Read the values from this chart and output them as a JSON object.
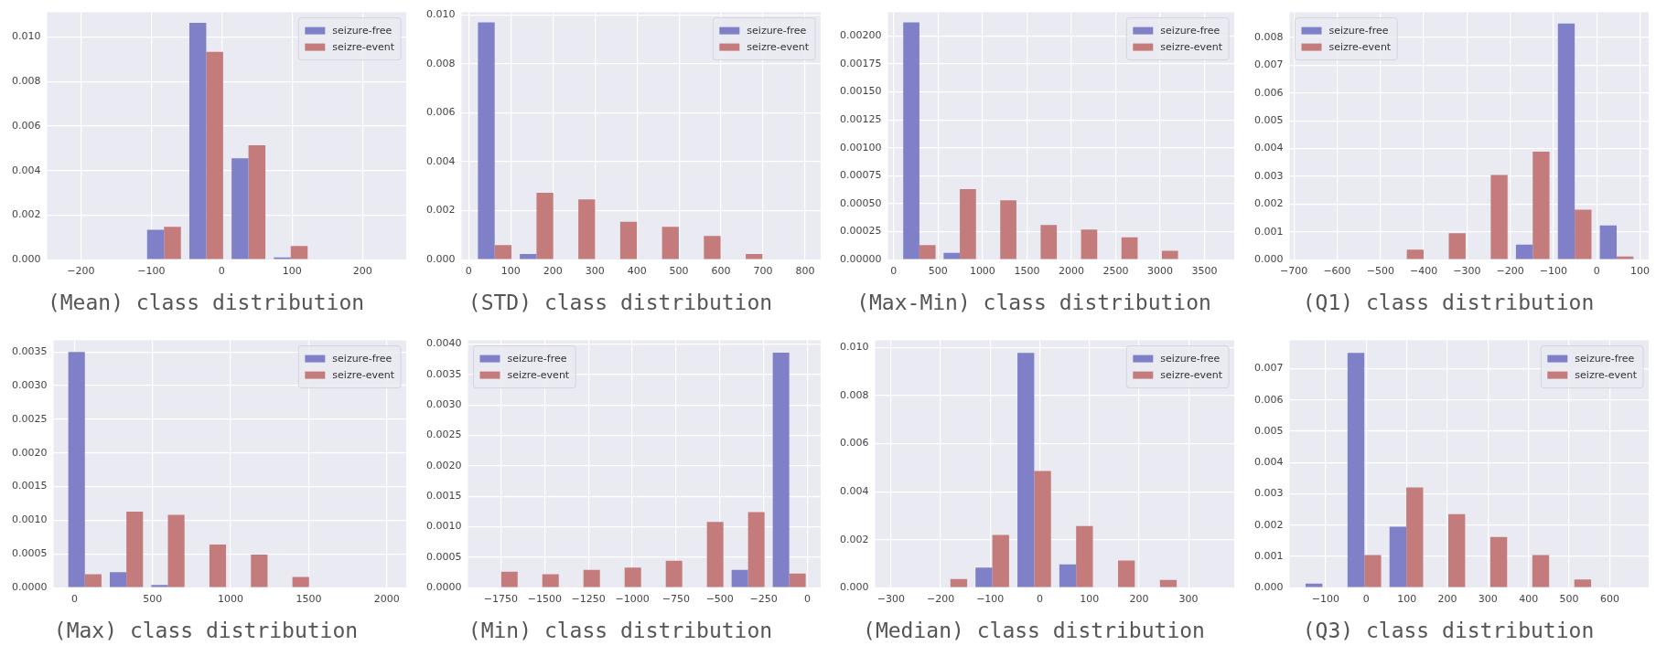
{
  "chart_data": [
    {
      "type": "histogram",
      "title": "(Mean) class distribution",
      "bins": [
        -232,
        -172,
        -112,
        -52,
        8,
        68,
        128,
        188,
        248
      ],
      "series": [
        {
          "name": "seizure-free",
          "color": "#8080c8",
          "values": [
            0,
            0,
            0.00134,
            0.01063,
            0.00455,
            0.0001,
            0,
            0
          ]
        },
        {
          "name": "seizre-event",
          "color": "#c47b7b",
          "values": [
            0,
            0,
            0.00147,
            0.00933,
            0.00514,
            0.00061,
            0,
            0
          ]
        }
      ],
      "xlim": [
        -248,
        262
      ],
      "ylim": [
        0,
        0.0111
      ],
      "xticks": [
        {
          "value": -200,
          "label": "−200"
        },
        {
          "value": -100,
          "label": "−100"
        },
        0,
        100,
        200
      ],
      "yticks": [
        {
          "value": 0,
          "label": "0.000"
        },
        0.002,
        0.004,
        0.006,
        0.008,
        {
          "value": 0.01,
          "label": "0.010"
        }
      ],
      "grid": true,
      "legend": "top right"
    },
    {
      "type": "histogram",
      "title": "(STD) class distribution",
      "bins": [
        12,
        111.5,
        211,
        310.5,
        410,
        509.5,
        609,
        708.5,
        808
      ],
      "series": [
        {
          "name": "seizure-free",
          "color": "#8080c8",
          "values": [
            0.00969,
            0.00023,
            0,
            0,
            0,
            0,
            0,
            0
          ]
        },
        {
          "name": "seizre-event",
          "color": "#c47b7b",
          "values": [
            0.0006,
            0.00273,
            0.00246,
            0.00155,
            0.00134,
            0.00097,
            0.00023,
            0
          ]
        }
      ],
      "xlim": [
        -17,
        837
      ],
      "ylim": [
        0,
        0.0101
      ],
      "xticks": [
        0,
        100,
        200,
        300,
        400,
        500,
        600,
        700,
        800
      ],
      "yticks": [
        {
          "value": 0,
          "label": "0.000"
        },
        0.002,
        0.004,
        0.006,
        0.008,
        {
          "value": 0.01,
          "label": "0.010"
        }
      ],
      "grid": true,
      "legend": "top right"
    },
    {
      "type": "histogram",
      "title": "(Max-Min) class distribution",
      "bins": [
        62,
        517,
        972,
        1427,
        1882,
        2337,
        2792,
        3247,
        3702
      ],
      "series": [
        {
          "name": "seizure-free",
          "color": "#8080c8",
          "values": [
            0.00212,
            6e-05,
            0,
            0,
            0,
            0,
            0,
            0
          ]
        },
        {
          "name": "seizre-event",
          "color": "#c47b7b",
          "values": [
            0.00013,
            0.00063,
            0.00053,
            0.00031,
            0.00027,
            0.0002,
            8e-05,
            0
          ]
        }
      ],
      "xlim": [
        -65,
        3834
      ],
      "ylim": [
        0,
        0.00221
      ],
      "xticks": [
        0,
        500,
        1000,
        1500,
        2000,
        2500,
        3000,
        3500
      ],
      "yticks": [
        {
          "value": 0,
          "label": "0.00000"
        },
        0.00025,
        {
          "value": 0.0005,
          "label": "0.00050"
        },
        0.00075,
        {
          "value": 0.001,
          "label": "0.00100"
        },
        0.00125,
        {
          "value": 0.0015,
          "label": "0.00150"
        },
        0.00175,
        {
          "value": 0.002,
          "label": "0.00200"
        }
      ],
      "grid": true,
      "legend": "top right"
    },
    {
      "type": "histogram",
      "title": "(Q1) class distribution",
      "bins": [
        -681.5,
        -584.5,
        -487.5,
        -390.5,
        -293.5,
        -196.5,
        -99.5,
        -2.5,
        94.5
      ],
      "series": [
        {
          "name": "seizure-free",
          "color": "#8080c8",
          "values": [
            0,
            0,
            0,
            0,
            0,
            0.00054,
            0.0085,
            0.00123
          ]
        },
        {
          "name": "seizre-event",
          "color": "#c47b7b",
          "values": [
            0,
            0,
            0.00036,
            0.00095,
            0.00305,
            0.00389,
            0.0018,
            0.00011
          ]
        }
      ],
      "xlim": [
        -710,
        120
      ],
      "ylim": [
        0,
        0.0089
      ],
      "xticks": [
        {
          "value": -700,
          "label": "−700"
        },
        {
          "value": -600,
          "label": "−600"
        },
        {
          "value": -500,
          "label": "−500"
        },
        {
          "value": -400,
          "label": "−400"
        },
        {
          "value": -300,
          "label": "−300"
        },
        {
          "value": -200,
          "label": "−200"
        },
        {
          "value": -100,
          "label": "−100"
        },
        0,
        100
      ],
      "yticks": [
        {
          "value": 0,
          "label": "0.000"
        },
        0.001,
        0.002,
        0.003,
        0.004,
        0.005,
        0.006,
        0.007,
        0.008
      ],
      "grid": true,
      "legend": "top left"
    },
    {
      "type": "histogram",
      "title": "(Max) class distribution",
      "bins": [
        -67,
        199,
        465,
        731,
        997,
        1263,
        1529,
        1795,
        2061
      ],
      "series": [
        {
          "name": "seizure-free",
          "color": "#8080c8",
          "values": [
            0.0035,
            0.00023,
            4e-05,
            0,
            0,
            0,
            0,
            0
          ]
        },
        {
          "name": "seizre-event",
          "color": "#c47b7b",
          "values": [
            0.0002,
            0.00113,
            0.00108,
            0.00064,
            0.00049,
            0.00016,
            0,
            0
          ]
        }
      ],
      "xlim": [
        -135,
        2125
      ],
      "ylim": [
        0,
        0.00367
      ],
      "xticks": [
        0,
        500,
        1000,
        1500,
        2000
      ],
      "yticks": [
        {
          "value": 0,
          "label": "0.0000"
        },
        0.0005,
        {
          "value": 0.001,
          "label": "0.0010"
        },
        0.0015,
        {
          "value": 0.002,
          "label": "0.0020"
        },
        0.0025,
        {
          "value": 0.003,
          "label": "0.0030"
        },
        0.0035
      ],
      "grid": true,
      "legend": "top right"
    },
    {
      "type": "histogram",
      "title": "(Min) class distribution",
      "bins": [
        -1866,
        -1631,
        -1396,
        -1161,
        -926,
        -691,
        -456,
        -221,
        14
      ],
      "series": [
        {
          "name": "seizure-free",
          "color": "#8080c8",
          "values": [
            0,
            0,
            0,
            0,
            0,
            0,
            0.00029,
            0.00386
          ]
        },
        {
          "name": "seizre-event",
          "color": "#c47b7b",
          "values": [
            0.00026,
            0.00022,
            0.00029,
            0.00033,
            0.00044,
            0.00108,
            0.00124,
            0.00023
          ]
        }
      ],
      "xlim": [
        -1938,
        76
      ],
      "ylim": [
        0,
        0.00406
      ],
      "xticks": [
        {
          "value": -1750,
          "label": "−1750"
        },
        {
          "value": -1500,
          "label": "−1500"
        },
        {
          "value": -1250,
          "label": "−1250"
        },
        {
          "value": -1000,
          "label": "−1000"
        },
        {
          "value": -750,
          "label": "−750"
        },
        {
          "value": -500,
          "label": "−500"
        },
        {
          "value": -250,
          "label": "−250"
        },
        0
      ],
      "yticks": [
        {
          "value": 0,
          "label": "0.0000"
        },
        0.0005,
        {
          "value": 0.001,
          "label": "0.0010"
        },
        0.0015,
        {
          "value": 0.002,
          "label": "0.0020"
        },
        0.0025,
        {
          "value": 0.003,
          "label": "0.0030"
        },
        0.0035,
        {
          "value": 0.004,
          "label": "0.0040"
        }
      ],
      "grid": true,
      "legend": "top left"
    },
    {
      "type": "histogram",
      "title": "(Median) class distribution",
      "bins": [
        -307,
        -222.5,
        -138,
        -53.5,
        31,
        115.5,
        200,
        284.5,
        369
      ],
      "series": [
        {
          "name": "seizure-free",
          "color": "#8080c8",
          "values": [
            0,
            0,
            0.00084,
            0.00978,
            0.00097,
            0,
            0,
            0
          ]
        },
        {
          "name": "seizre-event",
          "color": "#c47b7b",
          "values": [
            0,
            0.00036,
            0.0022,
            0.00486,
            0.00257,
            0.00113,
            0.00032,
            0
          ]
        }
      ],
      "xlim": [
        -332,
        392
      ],
      "ylim": [
        0,
        0.0103
      ],
      "xticks": [
        {
          "value": -300,
          "label": "−300"
        },
        {
          "value": -200,
          "label": "−200"
        },
        {
          "value": -100,
          "label": "−100"
        },
        0,
        100,
        200,
        300
      ],
      "yticks": [
        {
          "value": 0,
          "label": "0.000"
        },
        0.002,
        0.004,
        0.006,
        0.008,
        {
          "value": 0.01,
          "label": "0.010"
        }
      ],
      "grid": true,
      "legend": "top right"
    },
    {
      "type": "histogram",
      "title": "(Q3) class distribution",
      "bins": [
        -160,
        -56.5,
        47,
        150.5,
        254,
        357.5,
        461,
        564.5,
        668
      ],
      "series": [
        {
          "name": "seizure-free",
          "color": "#8080c8",
          "values": [
            0.00013,
            0.0075,
            0.00195,
            0,
            0,
            0,
            0,
            0
          ]
        },
        {
          "name": "seizre-event",
          "color": "#c47b7b",
          "values": [
            0,
            0.00104,
            0.0032,
            0.00235,
            0.00162,
            0.00104,
            0.00026,
            0
          ]
        }
      ],
      "xlim": [
        -189,
        696
      ],
      "ylim": [
        0,
        0.0079
      ],
      "xticks": [
        {
          "value": -100,
          "label": "−100"
        },
        0,
        100,
        200,
        300,
        400,
        500,
        600
      ],
      "yticks": [
        {
          "value": 0,
          "label": "0.000"
        },
        0.001,
        0.002,
        0.003,
        0.004,
        0.005,
        0.006,
        0.007
      ],
      "grid": true,
      "legend": "top right"
    }
  ]
}
